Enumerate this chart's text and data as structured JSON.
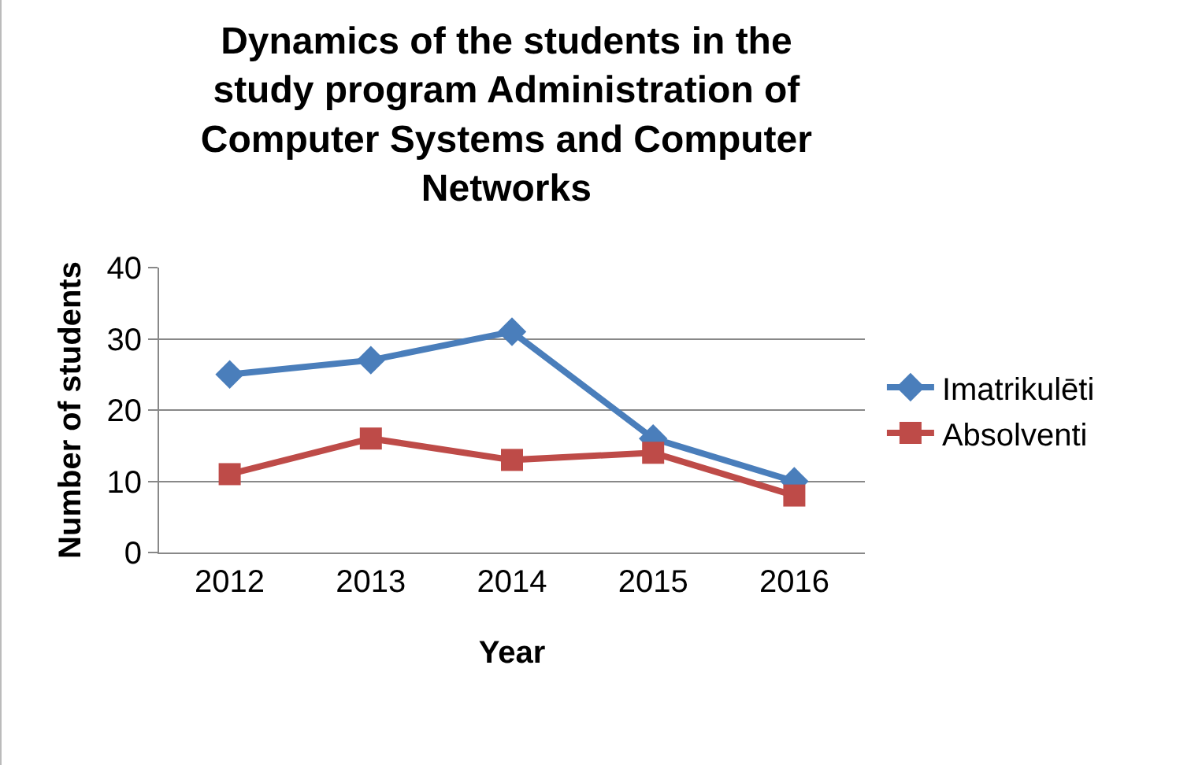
{
  "chart_data": {
    "type": "line",
    "title": "Dynamics of the students in the study program Administration of Computer Systems and Computer Networks",
    "xlabel": "Year",
    "ylabel": "Number of students",
    "categories": [
      "2012",
      "2013",
      "2014",
      "2015",
      "2016"
    ],
    "series": [
      {
        "name": "Imatrikulēti",
        "color": "#4a7ebb",
        "marker": "diamond",
        "values": [
          25,
          27,
          31,
          16,
          10
        ]
      },
      {
        "name": "Absolventi",
        "color": "#be4b48",
        "marker": "square",
        "values": [
          11,
          16,
          13,
          14,
          8
        ]
      }
    ],
    "ylim": [
      0,
      40
    ],
    "yticks": [
      0,
      10,
      20,
      30,
      40
    ],
    "grid": "y",
    "legend": "right",
    "line_style": "solid"
  }
}
